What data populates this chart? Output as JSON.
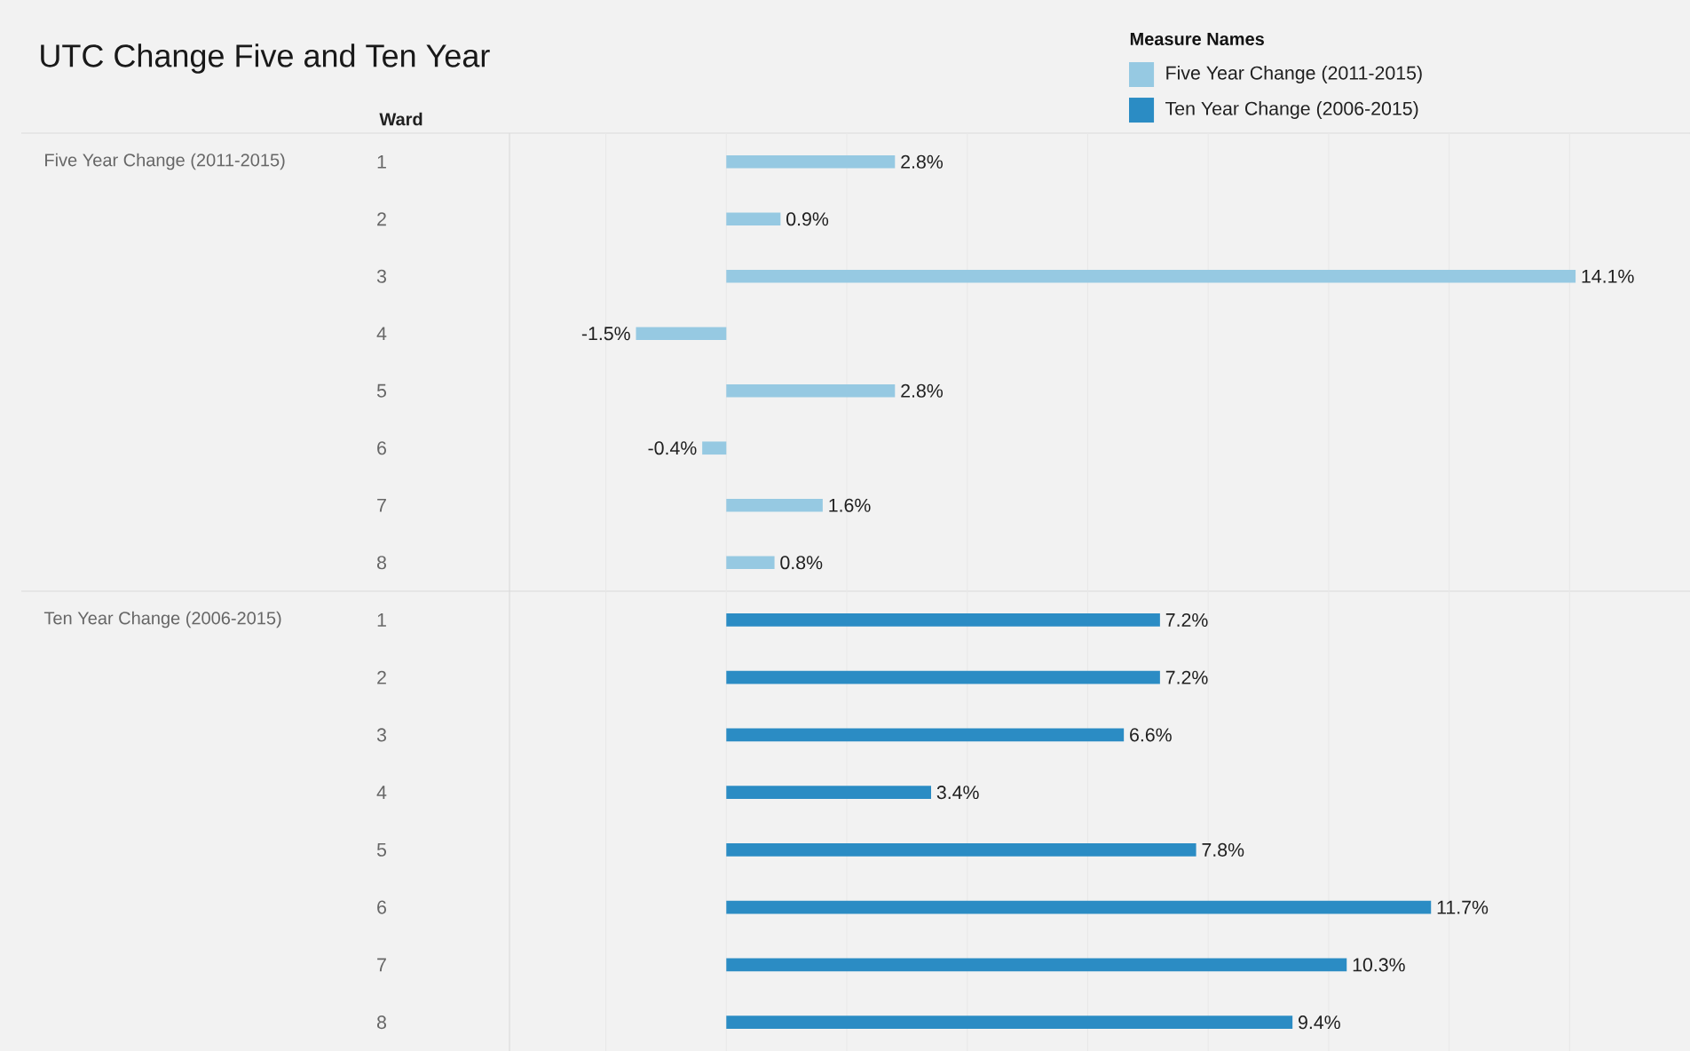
{
  "chart_data": [
    {
      "type": "bar",
      "orientation": "horizontal",
      "title": "UTC Change Five and Ten Year",
      "ylabel": "Ward",
      "legend_title": "Measure Names",
      "legend": "top right",
      "grid": "x",
      "tick_labels": "y",
      "data_labels": true,
      "categories": [
        "1",
        "2",
        "3",
        "4",
        "5",
        "6",
        "7",
        "8"
      ],
      "xticks": [
        {
          "value": -2,
          "label": null
        },
        {
          "value": 0,
          "label": null
        },
        {
          "value": 2,
          "label": null
        },
        {
          "value": 4,
          "label": null
        },
        {
          "value": 6,
          "label": null
        },
        {
          "value": 8,
          "label": null
        },
        {
          "value": 10,
          "label": null
        },
        {
          "value": 12,
          "label": null
        },
        {
          "value": 14,
          "label": null
        }
      ],
      "series": [
        {
          "name": "Five Year Change (2011-2015)",
          "color": "#96c9e2",
          "values": [
            2.8,
            0.9,
            14.1,
            -1.5,
            2.8,
            -0.4,
            1.6,
            0.8
          ],
          "value_labels": [
            "2.8%",
            "0.9%",
            "14.1%",
            "-1.5%",
            "2.8%",
            "-0.4%",
            "1.6%",
            "0.8%"
          ]
        }
      ]
    },
    {
      "type": "bar",
      "orientation": "horizontal",
      "grid": "x",
      "tick_labels": "y",
      "data_labels": true,
      "categories": [
        "1",
        "2",
        "3",
        "4",
        "5",
        "6",
        "7",
        "8"
      ],
      "xticks": [
        {
          "value": -2,
          "label": null
        },
        {
          "value": 0,
          "label": null
        },
        {
          "value": 2,
          "label": null
        },
        {
          "value": 4,
          "label": null
        },
        {
          "value": 6,
          "label": null
        },
        {
          "value": 8,
          "label": null
        },
        {
          "value": 10,
          "label": null
        },
        {
          "value": 12,
          "label": null
        },
        {
          "value": 14,
          "label": null
        }
      ],
      "series": [
        {
          "name": "Ten Year Change (2006-2015)",
          "color": "#2b8cc4",
          "values": [
            7.2,
            7.2,
            6.6,
            3.4,
            7.8,
            11.7,
            10.3,
            9.4
          ],
          "value_labels": [
            "7.2%",
            "7.2%",
            "6.6%",
            "3.4%",
            "7.8%",
            "11.7%",
            "10.3%",
            "9.4%"
          ]
        }
      ]
    }
  ]
}
